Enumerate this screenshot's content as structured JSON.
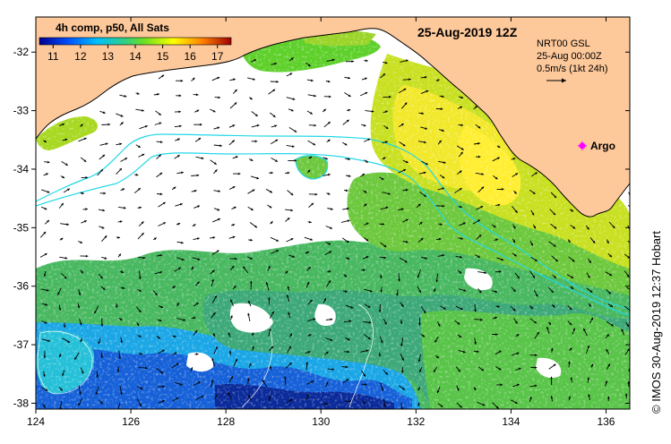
{
  "map": {
    "title": "25-Aug-2019 12Z",
    "colorbar": {
      "title": "4h comp, p50, All Sats",
      "ticks": [
        "11",
        "12",
        "13",
        "14",
        "15",
        "16",
        "17"
      ],
      "range": [
        10.5,
        17.5
      ]
    },
    "legend": {
      "line1": "NRT00 GSL",
      "line2": "25-Aug 00:00Z",
      "line3": "0.5m/s (1kt 24h)"
    },
    "argo_label": "Argo",
    "credit": "© IMOS 30-Aug-2019 12:37 Hobart",
    "x_ticks": [
      "124",
      "126",
      "128",
      "130",
      "132",
      "134",
      "136"
    ],
    "y_ticks": [
      "-32",
      "-33",
      "-34",
      "-35",
      "-36",
      "-37",
      "-38"
    ],
    "lon_range": [
      124,
      136.5
    ],
    "lat_range": [
      -38.1,
      -31.4
    ],
    "argo_position": {
      "lon": 135.5,
      "lat": -33.6
    },
    "colors": {
      "land": "#fdc89a",
      "ocean_white": "#ffffff",
      "current_line": "#22d8e8",
      "argo_marker": "#ff00ff",
      "vector": "#000000"
    }
  }
}
